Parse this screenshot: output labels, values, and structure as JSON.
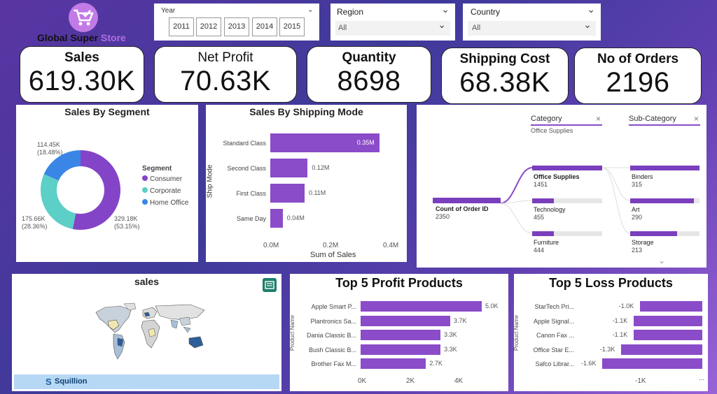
{
  "logo": {
    "text_left": "Global Super ",
    "text_right": "Store"
  },
  "filters": {
    "year": {
      "label": "Year",
      "options": [
        "2011",
        "2012",
        "2013",
        "2014",
        "2015"
      ]
    },
    "region": {
      "label": "Region",
      "value": "All"
    },
    "country": {
      "label": "Country",
      "value": "All"
    }
  },
  "kpis": [
    {
      "title": "Sales",
      "value": "619.30K"
    },
    {
      "title": "Net Profit",
      "value": "70.63K"
    },
    {
      "title": "Quantity",
      "value": "8698"
    },
    {
      "title": "Shipping Cost",
      "value": "68.38K"
    },
    {
      "title": "No of Orders",
      "value": "2196"
    }
  ],
  "segment_chart": {
    "title": "Sales By Segment",
    "legend_title": "Segment",
    "legend": [
      "Consumer",
      "Corporate",
      "Home Office"
    ],
    "labels": {
      "home": [
        "114.45K",
        "(18.48%)"
      ],
      "corporate": [
        "175.66K",
        "(28.36%)"
      ],
      "consumer": [
        "329.18K",
        "(53.15%)"
      ]
    }
  },
  "shipping_chart": {
    "title": "Sales By Shipping Mode",
    "ylabel": "Ship Mode",
    "xlabel": "Sum of Sales",
    "ticks": [
      "0.0M",
      "0.2M",
      "0.4M"
    ],
    "value_labels": [
      "0.35M",
      "0.12M",
      "0.11M",
      "0.04M"
    ]
  },
  "decomp_tree": {
    "category_header": "Category",
    "category_filter": "Office Supplies",
    "subcategory_header": "Sub-Category",
    "root_label": "Count of Order ID",
    "root_value": "2350",
    "categories": [
      {
        "name": "Office Supplies",
        "value": "1451",
        "fraction": 1.0
      },
      {
        "name": "Technology",
        "value": "455",
        "fraction": 0.31
      },
      {
        "name": "Furniture",
        "value": "444",
        "fraction": 0.31
      }
    ],
    "subcategories": [
      {
        "name": "Binders",
        "value": "315",
        "fraction": 1.0
      },
      {
        "name": "Art",
        "value": "290",
        "fraction": 0.92
      },
      {
        "name": "Storage",
        "value": "213",
        "fraction": 0.68
      }
    ],
    "close_glyph": "×",
    "expand_glyph": "⌄"
  },
  "map": {
    "title": "sales",
    "brand": "Squillion"
  },
  "profit_chart": {
    "title": "Top 5 Profit Products",
    "ylabel": "Product Name",
    "ticks": [
      "0K",
      "2K",
      "4K"
    ]
  },
  "loss_chart": {
    "title": "Top 5 Loss Products",
    "ylabel": "Product Name",
    "ticks": [
      "-1K"
    ],
    "more": "..."
  },
  "chart_data": [
    {
      "type": "pie",
      "title": "Sales By Segment",
      "categories": [
        "Consumer",
        "Corporate",
        "Home Office"
      ],
      "values": [
        329.18,
        175.66,
        114.45
      ],
      "percent": [
        53.15,
        28.36,
        18.48
      ],
      "colors": [
        "#8444c7",
        "#5ccfc7",
        "#3a86e6"
      ],
      "legend_position": "right"
    },
    {
      "type": "bar",
      "title": "Sales By Shipping Mode",
      "categories": [
        "Standard Class",
        "Second Class",
        "First Class",
        "Same Day"
      ],
      "values": [
        0.35,
        0.12,
        0.11,
        0.04
      ],
      "xlabel": "Sum of Sales",
      "ylabel": "Ship Mode",
      "xlim": [
        0,
        0.4
      ]
    },
    {
      "type": "bar",
      "title": "Top 5 Profit Products",
      "categories": [
        "Apple Smart P...",
        "Plantronics Sa...",
        "Dania Classic B...",
        "Bush Classic B...",
        "Brother Fax M..."
      ],
      "values": [
        5.0,
        3.7,
        3.3,
        3.3,
        2.7
      ],
      "value_labels": [
        "5.0K",
        "3.7K",
        "3.3K",
        "3.3K",
        "2.7K"
      ],
      "ylabel": "Product Name",
      "xlim": [
        0,
        5.3
      ]
    },
    {
      "type": "bar",
      "title": "Top 5 Loss Products",
      "categories": [
        "StarTech Pri...",
        "Apple Signal...",
        "Canon Fax ...",
        "Office Star E...",
        "Safco Librar..."
      ],
      "values": [
        -1.0,
        -1.1,
        -1.1,
        -1.3,
        -1.6
      ],
      "value_labels": [
        "-1.0K",
        "-1.1K",
        "-1.1K",
        "-1.3K",
        "-1.6K"
      ],
      "ylabel": "Product Name"
    }
  ],
  "colors": {
    "accent": "#8a4cc8",
    "consumer": "#8444c7",
    "corporate": "#5ccfc7",
    "home_office": "#3a86e6"
  }
}
